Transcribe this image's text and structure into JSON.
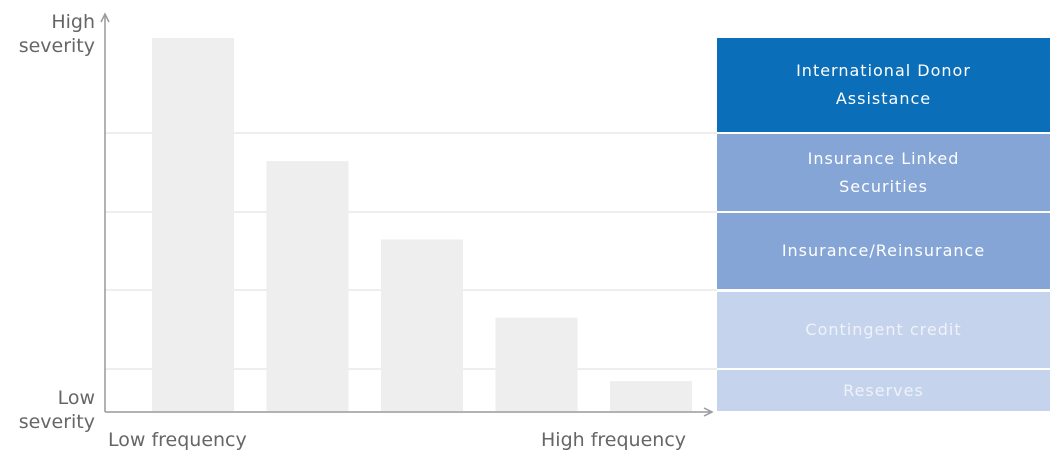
{
  "y_axis": {
    "top_label_line1": "High",
    "top_label_line2": "severity",
    "bottom_label_line1": "Low",
    "bottom_label_line2": "severity"
  },
  "x_axis": {
    "left_label": "Low frequency",
    "right_label": "High frequency"
  },
  "colors": {
    "bar": "#eeeeee",
    "axis": "#999999",
    "grid": "#dddddd",
    "layer_dark": "#0a6eb8",
    "layer_medium": "#84a5d6",
    "layer_light": "#c5d3ec"
  },
  "layers": [
    {
      "line1": "International Donor",
      "line2": "Assistance",
      "level": "dark"
    },
    {
      "line1": "Insurance Linked",
      "line2": "Securities",
      "level": "medium"
    },
    {
      "line1": "Insurance/Reinsurance",
      "line2": "",
      "level": "medium"
    },
    {
      "line1": "Contingent credit",
      "line2": "",
      "level": "light"
    },
    {
      "line1": "Reserves",
      "line2": "",
      "level": "light"
    }
  ],
  "chart_data": {
    "type": "bar",
    "categories": [
      "",
      "",
      "",
      "",
      ""
    ],
    "values": [
      100,
      67,
      46,
      25,
      8
    ],
    "ylim": [
      0,
      100
    ],
    "xlabel": "",
    "ylabel": "",
    "grid": true
  }
}
